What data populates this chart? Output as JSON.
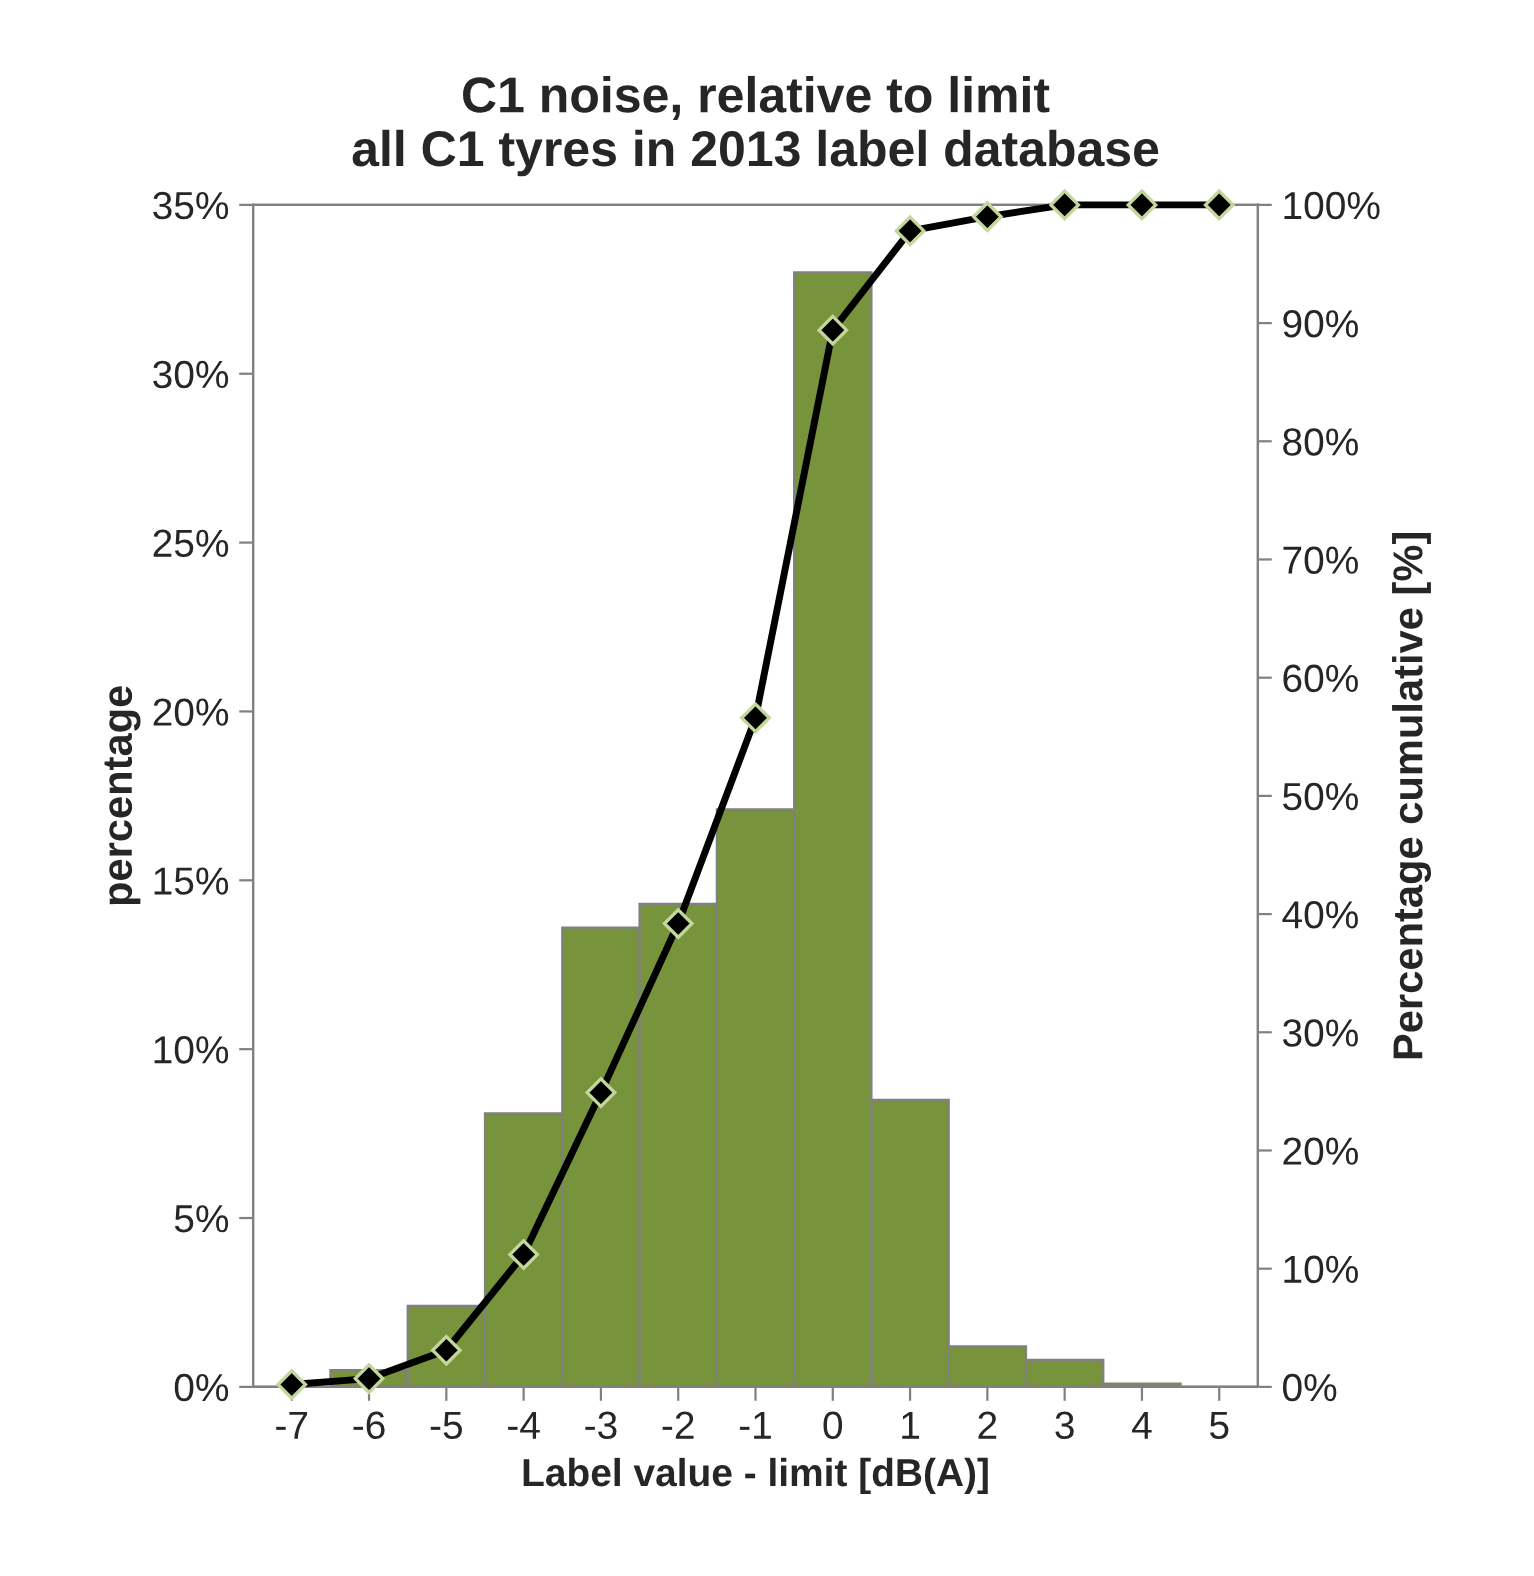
{
  "chart_data": {
    "type": "bar",
    "title": "C1 noise, relative to limit\nall C1 tyres in 2013 label database",
    "xlabel": "Label value - limit [dB(A)]",
    "ylabel": "percentage",
    "y2label": "Percentage cumulative [%]",
    "categories": [
      "-7",
      "-6",
      "-5",
      "-4",
      "-3",
      "-2",
      "-1",
      "0",
      "1",
      "2",
      "3",
      "4",
      "5"
    ],
    "series": [
      {
        "color": "#77933c",
        "values": [
          0,
          0.5,
          2.4,
          8.1,
          13.6,
          14.3,
          17.1,
          33.0,
          8.5,
          1.2,
          0.8,
          0.1,
          0
        ]
      },
      {
        "type": "line",
        "axis": "y2",
        "color": "#000000",
        "marker": "diamond",
        "line_style": "solid",
        "values": [
          0.2,
          0.7,
          3.1,
          11.2,
          24.9,
          39.2,
          56.6,
          89.4,
          97.8,
          99.0,
          100,
          100,
          100
        ]
      }
    ],
    "ylim": [
      0,
      35
    ],
    "yticks": [
      {
        "value": 0,
        "label": "0%"
      },
      {
        "value": 5,
        "label": "5%"
      },
      {
        "value": 10,
        "label": "10%"
      },
      {
        "value": 15,
        "label": "15%"
      },
      {
        "value": 20,
        "label": "20%"
      },
      {
        "value": 25,
        "label": "25%"
      },
      {
        "value": 30,
        "label": "30%"
      },
      {
        "value": 35,
        "label": "35%"
      }
    ],
    "y2lim": [
      0,
      100
    ],
    "y2ticks": [
      {
        "value": 0,
        "label": "0%"
      },
      {
        "value": 10,
        "label": "10%"
      },
      {
        "value": 20,
        "label": "20%"
      },
      {
        "value": 30,
        "label": "30%"
      },
      {
        "value": 40,
        "label": "40%"
      },
      {
        "value": 50,
        "label": "50%"
      },
      {
        "value": 60,
        "label": "60%"
      },
      {
        "value": 70,
        "label": "70%"
      },
      {
        "value": 80,
        "label": "80%"
      },
      {
        "value": 90,
        "label": "90%"
      },
      {
        "value": 100,
        "label": "100%"
      }
    ],
    "grid": false,
    "legend": false
  }
}
